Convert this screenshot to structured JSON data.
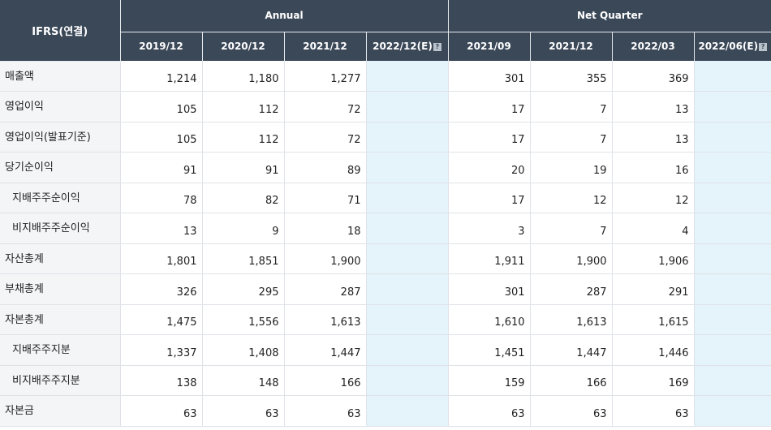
{
  "header": {
    "label": "IFRS(연결)",
    "annual_label": "Annual",
    "quarter_label": "Net Quarter",
    "help_glyph": "?",
    "periods": [
      "2019/12",
      "2020/12",
      "2021/12",
      "2022/12(E)",
      "2021/09",
      "2021/12",
      "2022/03",
      "2022/06(E)"
    ]
  },
  "rows": [
    {
      "label": "매출액",
      "values": [
        "1,214",
        "1,180",
        "1,277",
        "",
        "301",
        "355",
        "369",
        ""
      ]
    },
    {
      "label": "영업이익",
      "values": [
        "105",
        "112",
        "72",
        "",
        "17",
        "7",
        "13",
        ""
      ]
    },
    {
      "label": "영업이익(발표기준)",
      "values": [
        "105",
        "112",
        "72",
        "",
        "17",
        "7",
        "13",
        ""
      ]
    },
    {
      "label": "당기순이익",
      "values": [
        "91",
        "91",
        "89",
        "",
        "20",
        "19",
        "16",
        ""
      ]
    },
    {
      "label": "지배주주순이익",
      "values": [
        "78",
        "82",
        "71",
        "",
        "17",
        "12",
        "12",
        ""
      ]
    },
    {
      "label": "비지배주주순이익",
      "values": [
        "13",
        "9",
        "18",
        "",
        "3",
        "7",
        "4",
        ""
      ]
    },
    {
      "label": "자산총계",
      "values": [
        "1,801",
        "1,851",
        "1,900",
        "",
        "1,911",
        "1,900",
        "1,906",
        ""
      ]
    },
    {
      "label": "부채총계",
      "values": [
        "326",
        "295",
        "287",
        "",
        "301",
        "287",
        "291",
        ""
      ]
    },
    {
      "label": "자본총계",
      "values": [
        "1,475",
        "1,556",
        "1,613",
        "",
        "1,610",
        "1,613",
        "1,615",
        ""
      ]
    },
    {
      "label": "지배주주지분",
      "values": [
        "1,337",
        "1,408",
        "1,447",
        "",
        "1,451",
        "1,447",
        "1,446",
        ""
      ]
    },
    {
      "label": "비지배주주지분",
      "values": [
        "138",
        "148",
        "166",
        "",
        "159",
        "166",
        "169",
        ""
      ]
    },
    {
      "label": "자본금",
      "values": [
        "63",
        "63",
        "63",
        "",
        "63",
        "63",
        "63",
        ""
      ]
    }
  ],
  "colors": {
    "header_bg": "#3b4858",
    "label_bg": "#f3f5f7",
    "estimate_bg": "#e4f4fa"
  }
}
